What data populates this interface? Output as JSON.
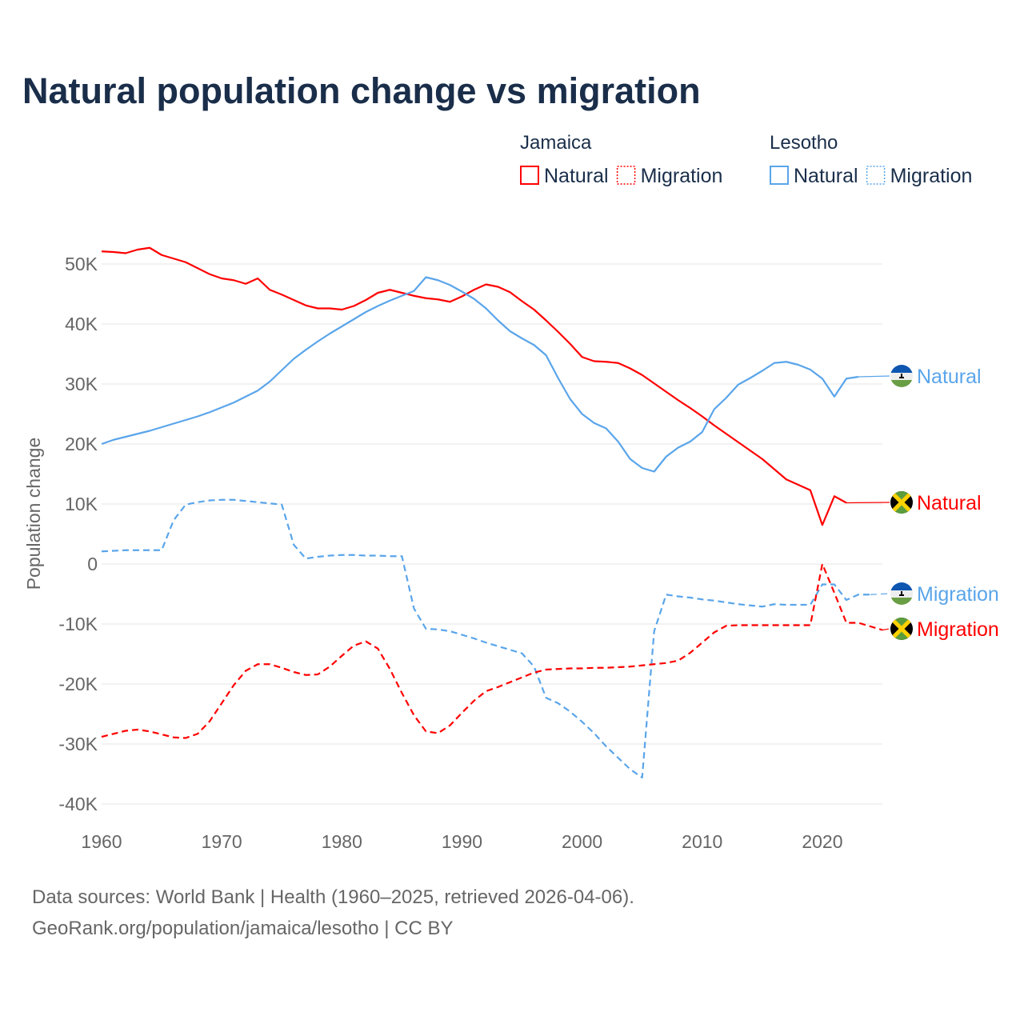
{
  "title": "Natural population change vs migration",
  "footer": {
    "line1": "Data sources: World Bank | Health (1960–2025, retrieved 2026-04-06).",
    "line2": "GeoRank.org/population/jamaica/lesotho | CC BY"
  },
  "legend": {
    "groups": [
      {
        "country": "Jamaica",
        "items": [
          {
            "label": "Natural",
            "style": "solid"
          },
          {
            "label": "Migration",
            "style": "dotted"
          }
        ],
        "color": "#ff0000"
      },
      {
        "country": "Lesotho",
        "items": [
          {
            "label": "Natural",
            "style": "solid"
          },
          {
            "label": "Migration",
            "style": "dotted"
          }
        ],
        "color": "#5aa5ea"
      }
    ]
  },
  "chart_data": {
    "type": "line",
    "title": "Natural population change vs migration",
    "xlabel": "",
    "ylabel": "Population change",
    "xlim": [
      1960,
      2025
    ],
    "ylim": [
      -40000,
      50000
    ],
    "xticks": [
      1960,
      1970,
      1980,
      1990,
      2000,
      2010,
      2020
    ],
    "xtick_labels": [
      "1960",
      "1970",
      "1980",
      "1990",
      "2000",
      "2010",
      "2020"
    ],
    "yticks": [
      50000,
      40000,
      30000,
      20000,
      10000,
      0,
      -10000,
      -20000,
      -30000,
      -40000
    ],
    "ytick_labels": [
      "50K",
      "40K",
      "30K",
      "20K",
      "10K",
      "0",
      "-10K",
      "-20K",
      "-30K",
      "-40K"
    ],
    "grid": true,
    "legend_position": "top-right",
    "series": [
      {
        "name": "Jamaica Natural",
        "end_label": "Natural",
        "flag": "jamaica",
        "color": "#ff0000",
        "dash": "solid",
        "start_year": 1960,
        "values": [
          52100,
          52000,
          51800,
          52400,
          52700,
          51500,
          50900,
          50300,
          49300,
          48300,
          47600,
          47300,
          46700,
          47600,
          45700,
          44900,
          44000,
          43100,
          42600,
          42600,
          42400,
          43000,
          44000,
          45200,
          45700,
          45200,
          44700,
          44300,
          44100,
          43700,
          44600,
          45700,
          46600,
          46200,
          45300,
          43800,
          42400,
          40600,
          38700,
          36700,
          34500,
          33800,
          33700,
          33500,
          32600,
          31500,
          30100,
          28700,
          27300,
          26000,
          24600,
          23100,
          21700,
          20300,
          18900,
          17500,
          15800,
          14100,
          13200,
          12300,
          6500,
          11300,
          10200
        ]
      },
      {
        "name": "Lesotho Natural",
        "end_label": "Natural",
        "flag": "lesotho",
        "color": "#5aa5ea",
        "dash": "solid",
        "start_year": 1960,
        "values": [
          20000,
          20700,
          21200,
          21700,
          22200,
          22800,
          23400,
          24000,
          24600,
          25300,
          26100,
          26900,
          27900,
          28900,
          30400,
          32300,
          34200,
          35700,
          37100,
          38400,
          39600,
          40800,
          42000,
          43000,
          43900,
          44700,
          45500,
          47800,
          47300,
          46500,
          45400,
          44200,
          42600,
          40600,
          38800,
          37600,
          36500,
          34800,
          31000,
          27500,
          25000,
          23500,
          22600,
          20400,
          17500,
          16000,
          15400,
          17900,
          19400,
          20400,
          22000,
          25800,
          27700,
          29900,
          31000,
          32200,
          33500,
          33700,
          33200,
          32400,
          30900,
          27900,
          30900,
          31200
        ]
      },
      {
        "name": "Lesotho Migration",
        "end_label": "Migration",
        "flag": "lesotho",
        "color": "#5aa5ea",
        "dash": "dashed",
        "start_year": 1960,
        "values": [
          2100,
          2200,
          2300,
          2300,
          2300,
          2300,
          7300,
          9900,
          10300,
          10600,
          10700,
          10700,
          10500,
          10300,
          10100,
          9900,
          3200,
          900,
          1200,
          1400,
          1500,
          1500,
          1400,
          1400,
          1300,
          1300,
          -7400,
          -10800,
          -10900,
          -11200,
          -11800,
          -12400,
          -13100,
          -13700,
          -14300,
          -14900,
          -17100,
          -22300,
          -23200,
          -24600,
          -26300,
          -28200,
          -30400,
          -32300,
          -34200,
          -35600,
          -11200,
          -5100,
          -5400,
          -5600,
          -5900,
          -6100,
          -6400,
          -6700,
          -6900,
          -7100,
          -6700,
          -6800,
          -6800,
          -6800,
          -3400,
          -3400,
          -6000,
          -5100,
          -5100
        ]
      },
      {
        "name": "Jamaica Migration",
        "end_label": "Migration",
        "flag": "jamaica",
        "color": "#ff0000",
        "dash": "dashed",
        "start_year": 1960,
        "values": [
          -28800,
          -28300,
          -27800,
          -27600,
          -27900,
          -28400,
          -28900,
          -29000,
          -28300,
          -26200,
          -23200,
          -20200,
          -17800,
          -16700,
          -16700,
          -17300,
          -18000,
          -18500,
          -18400,
          -17100,
          -15300,
          -13600,
          -12900,
          -14100,
          -17500,
          -21500,
          -25200,
          -27900,
          -28200,
          -26900,
          -24800,
          -22800,
          -21200,
          -20500,
          -19700,
          -18900,
          -18100,
          -17600,
          -17500,
          -17400,
          -17400,
          -17300,
          -17300,
          -17200,
          -17100,
          -16900,
          -16700,
          -16500,
          -16100,
          -14800,
          -13100,
          -11400,
          -10300,
          -10200,
          -10200,
          -10200,
          -10200,
          -10200,
          -10200,
          -10200,
          0,
          -4800,
          -9800,
          -9800,
          -10400,
          -11000
        ]
      }
    ]
  }
}
